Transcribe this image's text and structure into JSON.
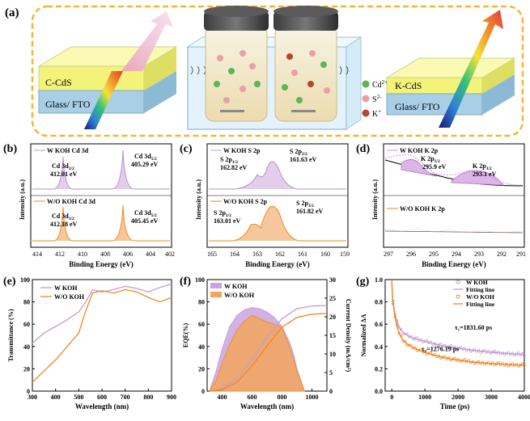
{
  "colors": {
    "with_koh": "#c59ad6",
    "without_koh": "#ee8a22",
    "frame": "#f2b733",
    "film_yellow": "#f3f37a",
    "glass_blue": "#a9cfe6",
    "k_peak": "#c47fd0"
  },
  "panel_a": {
    "label": "(a)",
    "left_stack": {
      "top_label": "C-CdS",
      "bottom_label": "Glass/ FTO"
    },
    "right_stack": {
      "top_label": "K-CdS",
      "bottom_label": "Glass/ FTO"
    },
    "legend": [
      {
        "ion": "Cd",
        "charge": "2+",
        "color": "#58b65c"
      },
      {
        "ion": "S",
        "charge": "2-",
        "color": "#e7a1a7"
      },
      {
        "ion": "K",
        "charge": "+",
        "color": "#b5472e"
      }
    ]
  },
  "panel_b": {
    "label": "(b)",
    "top_series": "W KOH Cd 3d",
    "bottom_series": "W/O KOH Cd 3d",
    "top_peaks": [
      {
        "name": "Cd 3d",
        "sub": "3/2",
        "value": "412.01 eV"
      },
      {
        "name": "Cd 3d",
        "sub": "5/2",
        "value": "405.29 eV"
      }
    ],
    "bottom_peaks": [
      {
        "name": "Cd 3d",
        "sub": "3/2",
        "value": "412.18 eV"
      },
      {
        "name": "Cd 3d",
        "sub": "5/2",
        "value": "405.45 eV"
      }
    ],
    "xlabel": "Binding Energy (eV)",
    "ylabel": "Intensity (a.u.)",
    "xticks": [
      "414",
      "412",
      "410",
      "408",
      "406",
      "404",
      "402"
    ]
  },
  "panel_c": {
    "label": "(c)",
    "top_series": "W KOH S 2p",
    "bottom_series": "W/O KOH S 2p",
    "top_peaks": [
      {
        "name": "S 2p",
        "sub": "1/2",
        "value": "162.82 eV"
      },
      {
        "name": "S 2p",
        "sub": "3/2",
        "value": "161.63 eV"
      }
    ],
    "bottom_peaks": [
      {
        "name": "S 2p",
        "sub": "1/2",
        "value": "163.01 eV"
      },
      {
        "name": "S 2p",
        "sub": "3/2",
        "value": "161.82 eV"
      }
    ],
    "xlabel": "Binding Energy (eV)",
    "ylabel": "Intensity (a.u.)",
    "xticks": [
      "165",
      "164",
      "163",
      "162",
      "161",
      "160",
      "159"
    ]
  },
  "panel_d": {
    "label": "(d)",
    "top_series": "W KOH K 2p",
    "bottom_series": "W/O KOH K 2p",
    "peaks": [
      {
        "name": "K 2p",
        "sub": "1/2",
        "value": "295.9 eV"
      },
      {
        "name": "K 2p",
        "sub": "3/2",
        "value": "293.1 eV"
      }
    ],
    "xlabel": "Binding Energy (eV)",
    "ylabel": "Intensity (a.u.)",
    "xticks": [
      "297",
      "296",
      "295",
      "294",
      "293",
      "292",
      "291"
    ]
  },
  "chart_data": [
    {
      "id": "e",
      "type": "line",
      "title": "(e)",
      "xlabel": "Wavelength (nm)",
      "ylabel": "Transmittance (%)",
      "xlim": [
        300,
        900
      ],
      "ylim": [
        0,
        100
      ],
      "xticks": [
        300,
        400,
        500,
        600,
        700,
        800,
        900
      ],
      "yticks": [
        0,
        20,
        40,
        60,
        80,
        100
      ],
      "series": [
        {
          "name": "W KOH",
          "x": [
            300,
            350,
            400,
            450,
            500,
            530,
            560,
            600,
            650,
            700,
            750,
            800,
            850,
            900
          ],
          "y": [
            43,
            52,
            58,
            64,
            71,
            80,
            91,
            89,
            91,
            94,
            92,
            89,
            93,
            96
          ]
        },
        {
          "name": "W/O KOH",
          "x": [
            300,
            350,
            400,
            450,
            500,
            530,
            560,
            600,
            650,
            700,
            750,
            800,
            850,
            900
          ],
          "y": [
            8,
            18,
            28,
            40,
            52,
            72,
            88,
            90,
            88,
            91,
            89,
            84,
            80,
            84
          ]
        }
      ]
    },
    {
      "id": "f",
      "type": "area",
      "title": "(f)",
      "xlabel": "Wavelength (nm)",
      "ylabel": "EQE(%)",
      "ylabel_right": "Current Density (mA/cm²)",
      "xlim": [
        300,
        1100
      ],
      "ylim": [
        0,
        100
      ],
      "ylim_right": [
        0,
        30
      ],
      "xticks": [
        400,
        600,
        800,
        1000
      ],
      "yticks": [
        0,
        20,
        40,
        60,
        80,
        100
      ],
      "yticks_right": [
        0,
        5,
        10,
        15,
        20,
        25,
        30
      ],
      "series": [
        {
          "name": "W KOH",
          "x": [
            320,
            360,
            400,
            450,
            500,
            550,
            600,
            650,
            700,
            750,
            800,
            850,
            880,
            900,
            950
          ],
          "y": [
            2,
            18,
            38,
            58,
            68,
            73,
            75,
            74,
            71,
            66,
            58,
            44,
            32,
            20,
            0
          ]
        },
        {
          "name": "W/O KOH",
          "x": [
            320,
            360,
            400,
            450,
            500,
            550,
            600,
            650,
            700,
            750,
            800,
            850,
            880,
            900,
            950
          ],
          "y": [
            1,
            10,
            25,
            42,
            55,
            63,
            68,
            65,
            62,
            60,
            57,
            40,
            28,
            18,
            0
          ]
        }
      ],
      "series_right": [
        {
          "name": "W KOH Jsc",
          "x": [
            320,
            400,
            500,
            600,
            700,
            800,
            900,
            1000,
            1100
          ],
          "y": [
            0,
            0.6,
            3.2,
            8.5,
            14.5,
            19.5,
            22.2,
            22.9,
            23.0
          ]
        },
        {
          "name": "W/O KOH Jsc",
          "x": [
            320,
            400,
            500,
            600,
            700,
            800,
            900,
            1000,
            1100
          ],
          "y": [
            0,
            0.4,
            2.4,
            6.8,
            12.2,
            17.2,
            19.8,
            20.7,
            20.9
          ]
        }
      ]
    },
    {
      "id": "g",
      "type": "scatter",
      "title": "(g)",
      "xlabel": "Time (ps)",
      "ylabel": "Normalized ΔA",
      "xlim": [
        -200,
        4000
      ],
      "ylim": [
        0,
        1.0
      ],
      "xticks": [
        0,
        1000,
        2000,
        3000,
        4000
      ],
      "yticks": [
        0.0,
        0.2,
        0.4,
        0.6,
        0.8,
        1.0
      ],
      "legend": [
        "W KOH",
        "Fitting line",
        "W/O KOH",
        "Fitting line"
      ],
      "annotations": [
        {
          "text": "τ₁=1831.60 ps",
          "x": 1900,
          "y": 0.55
        },
        {
          "text": "τ₂=1276.19 ps",
          "x": 900,
          "y": 0.36
        }
      ],
      "series": [
        {
          "name": "W KOH",
          "tau": 1831.6,
          "a1": 0.35,
          "a2": 0.25,
          "y0": 0.3
        },
        {
          "name": "W/O KOH",
          "tau": 1276.19,
          "a1": 0.42,
          "a2": 0.28,
          "y0": 0.22
        }
      ]
    }
  ]
}
